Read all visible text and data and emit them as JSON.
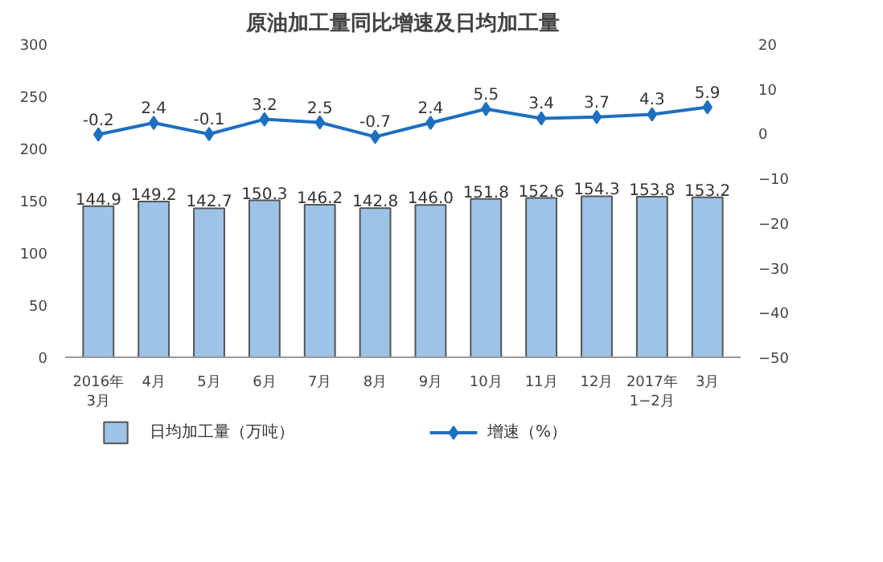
{
  "chart_data": {
    "type": "bar",
    "title": "原油加工量同比增速及日均加工量",
    "categories": [
      "2016年\n3月",
      "4月",
      "5月",
      "6月",
      "7月",
      "8月",
      "9月",
      "10月",
      "11月",
      "12月",
      "2017年\n1−2月",
      "3月"
    ],
    "series": [
      {
        "name": "日均加工量（万吨）",
        "color": "#9dc3e6",
        "values": [
          144.9,
          149.2,
          142.7,
          150.3,
          146.2,
          142.8,
          146.0,
          151.8,
          152.6,
          154.3,
          153.8,
          153.2
        ],
        "value_labels": [
          "144.9",
          "149.2",
          "142.7",
          "150.3",
          "146.2",
          "142.8",
          "146.0",
          "151.8",
          "152.6",
          "154.3",
          "153.8",
          "153.2"
        ]
      },
      {
        "name": "增速（%）",
        "type": "line",
        "axis": "y2",
        "color": "#1f6fc0",
        "values": [
          -0.2,
          2.4,
          -0.1,
          3.2,
          2.5,
          -0.7,
          2.4,
          5.5,
          3.4,
          3.7,
          4.3,
          5.9
        ]
      }
    ],
    "ylim": [
      0,
      300
    ],
    "yticks": [
      0,
      50,
      100,
      150,
      200,
      250,
      300
    ],
    "y2lim": [
      -50,
      20
    ],
    "y2ticks": [
      -50,
      -40,
      -30,
      -20,
      -10,
      0,
      10,
      20
    ],
    "data_labels": true,
    "grid": false,
    "legend": "bottom",
    "marker": "diamond"
  }
}
